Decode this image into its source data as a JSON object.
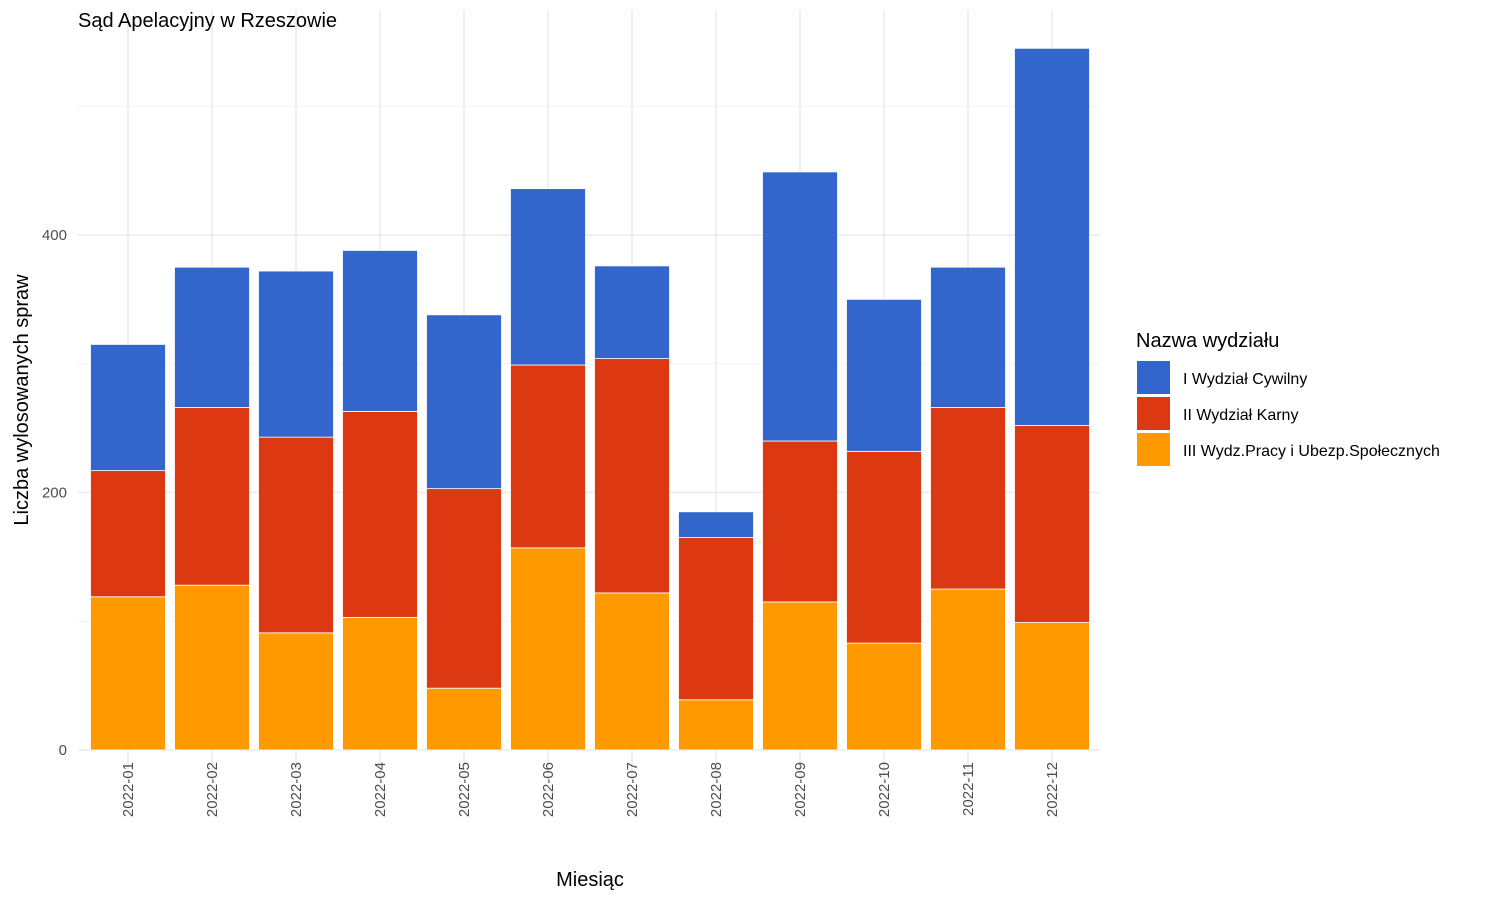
{
  "chart_data": {
    "type": "bar",
    "stacked": true,
    "title": "Sąd Apelacyjny w Rzeszowie",
    "xlabel": "Miesiąc",
    "ylabel": "Liczba wylosowanych spraw",
    "categories": [
      "2022-01",
      "2022-02",
      "2022-03",
      "2022-04",
      "2022-05",
      "2022-06",
      "2022-07",
      "2022-08",
      "2022-09",
      "2022-10",
      "2022-11",
      "2022-12"
    ],
    "ylim": [
      0,
      570
    ],
    "yticks": [
      0,
      200,
      400
    ],
    "ytick_labels": [
      "0",
      "200",
      "400"
    ],
    "grid": true,
    "legend_title": "Nazwa wydziału",
    "legend_position": "right",
    "series": [
      {
        "name": "III Wydz.Pracy i Ubezp.Społecznych",
        "color": "#FF9900",
        "values": [
          119,
          128,
          91,
          103,
          48,
          157,
          122,
          39,
          115,
          83,
          125,
          99
        ]
      },
      {
        "name": "II Wydział Karny",
        "color": "#DC3912",
        "values": [
          98,
          138,
          152,
          160,
          155,
          142,
          182,
          126,
          125,
          149,
          141,
          153
        ]
      },
      {
        "name": "I Wydział Cywilny",
        "color": "#3366CC",
        "values": [
          98,
          109,
          129,
          125,
          135,
          137,
          72,
          20,
          209,
          118,
          109,
          293
        ]
      }
    ],
    "legend_order": [
      "I Wydział Cywilny",
      "II Wydział Karny",
      "III Wydz.Pracy i Ubezp.Społecznych"
    ]
  }
}
